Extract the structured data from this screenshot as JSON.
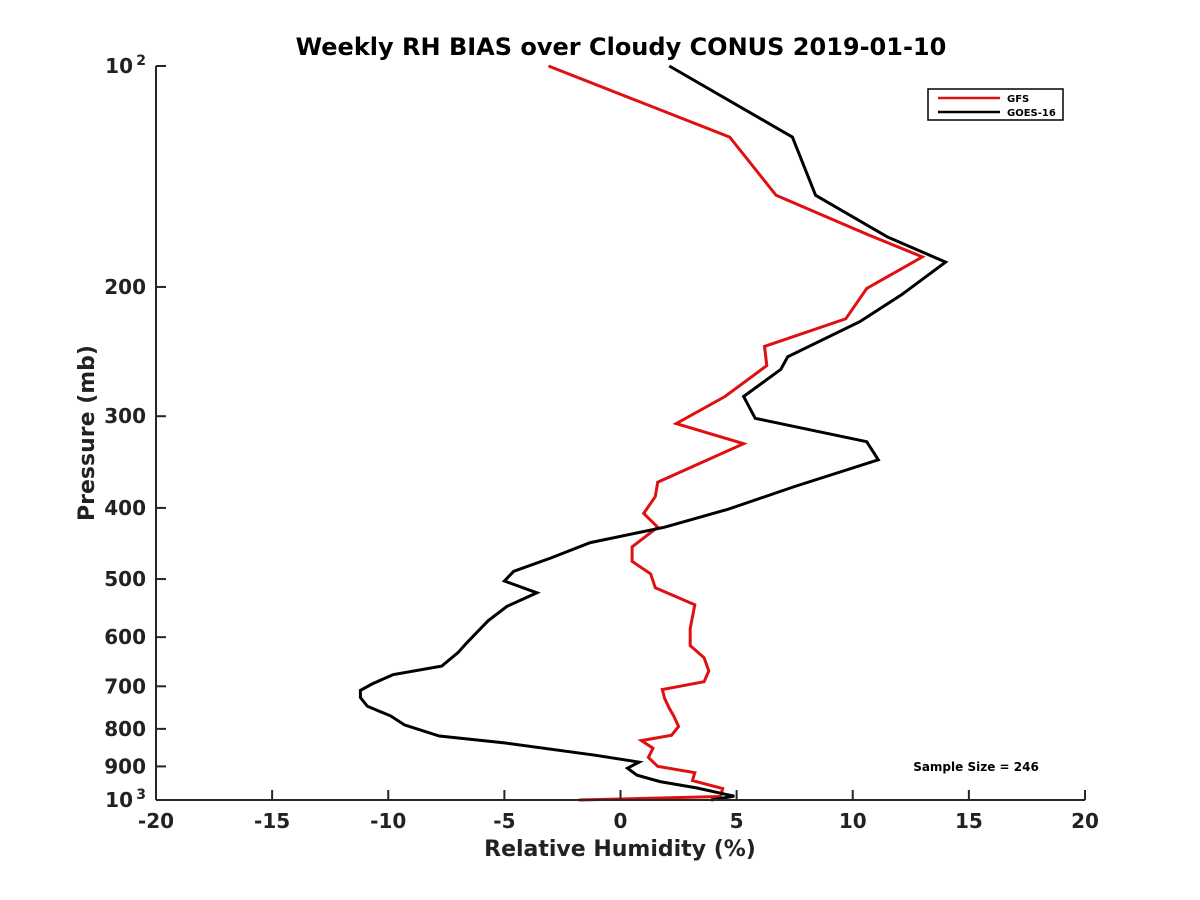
{
  "chart_data": {
    "type": "line",
    "title": "Weekly RH BIAS over Cloudy CONUS 2019-01-10",
    "xlabel": "Relative Humidity (%)",
    "ylabel": "Pressure (mb)",
    "xlim": [
      -20,
      20
    ],
    "ylim": [
      100,
      1000
    ],
    "y_scale": "log",
    "y_reversed": true,
    "grid": false,
    "x_ticks": [
      -20,
      -15,
      -10,
      -5,
      0,
      5,
      10,
      15,
      20
    ],
    "y_ticks": [
      {
        "value": 100,
        "label": "10",
        "sup": "2"
      },
      {
        "value": 200,
        "label": "200",
        "sup": ""
      },
      {
        "value": 300,
        "label": "300",
        "sup": ""
      },
      {
        "value": 400,
        "label": "400",
        "sup": ""
      },
      {
        "value": 500,
        "label": "500",
        "sup": ""
      },
      {
        "value": 600,
        "label": "600",
        "sup": ""
      },
      {
        "value": 700,
        "label": "700",
        "sup": ""
      },
      {
        "value": 800,
        "label": "800",
        "sup": ""
      },
      {
        "value": 900,
        "label": "900",
        "sup": ""
      },
      {
        "value": 1000,
        "label": "10",
        "sup": "3"
      }
    ],
    "legend_position": "top-right",
    "annotation": "Sample Size = 246",
    "series": [
      {
        "name": "GFS",
        "color": "#e01010",
        "points": [
          [
            -3.1,
            100
          ],
          [
            4.7,
            125
          ],
          [
            6.7,
            150
          ],
          [
            10.7,
            170
          ],
          [
            13.0,
            182
          ],
          [
            10.6,
            201
          ],
          [
            9.7,
            221
          ],
          [
            6.2,
            241
          ],
          [
            6.3,
            256
          ],
          [
            4.5,
            282
          ],
          [
            2.4,
            307
          ],
          [
            5.3,
            327
          ],
          [
            1.6,
            369
          ],
          [
            1.5,
            386
          ],
          [
            1.0,
            407
          ],
          [
            1.6,
            425
          ],
          [
            0.5,
            452
          ],
          [
            0.5,
            473
          ],
          [
            1.3,
            492
          ],
          [
            1.5,
            514
          ],
          [
            3.2,
            542
          ],
          [
            3.0,
            584
          ],
          [
            3.0,
            616
          ],
          [
            3.6,
            640
          ],
          [
            3.8,
            667
          ],
          [
            3.6,
            690
          ],
          [
            1.8,
            707
          ],
          [
            1.9,
            727
          ],
          [
            2.1,
            750
          ],
          [
            2.3,
            769
          ],
          [
            2.5,
            794
          ],
          [
            2.2,
            816
          ],
          [
            0.9,
            830
          ],
          [
            1.4,
            850
          ],
          [
            1.2,
            875
          ],
          [
            1.6,
            900
          ],
          [
            3.2,
            918
          ],
          [
            3.1,
            941
          ],
          [
            4.4,
            965
          ],
          [
            4.3,
            989
          ],
          [
            -1.8,
            1000
          ]
        ]
      },
      {
        "name": "GOES-16",
        "color": "#000000",
        "points": [
          [
            2.1,
            100
          ],
          [
            7.4,
            125
          ],
          [
            8.4,
            150
          ],
          [
            11.5,
            171
          ],
          [
            14.0,
            185
          ],
          [
            12.1,
            205
          ],
          [
            10.3,
            223
          ],
          [
            7.2,
            249
          ],
          [
            6.9,
            259
          ],
          [
            5.3,
            282
          ],
          [
            5.8,
            302
          ],
          [
            10.6,
            325
          ],
          [
            11.1,
            344
          ],
          [
            7.5,
            374
          ],
          [
            4.6,
            402
          ],
          [
            1.9,
            425
          ],
          [
            -1.3,
            446
          ],
          [
            -3.0,
            468
          ],
          [
            -4.6,
            488
          ],
          [
            -5.0,
            503
          ],
          [
            -3.6,
            522
          ],
          [
            -4.9,
            545
          ],
          [
            -5.7,
            570
          ],
          [
            -6.6,
            610
          ],
          [
            -7.0,
            630
          ],
          [
            -7.7,
            657
          ],
          [
            -9.8,
            675
          ],
          [
            -10.7,
            695
          ],
          [
            -11.2,
            709
          ],
          [
            -11.2,
            725
          ],
          [
            -10.9,
            745
          ],
          [
            -9.9,
            768
          ],
          [
            -9.3,
            790
          ],
          [
            -7.8,
            818
          ],
          [
            -5.0,
            836
          ],
          [
            -1.1,
            869
          ],
          [
            0.8,
            888
          ],
          [
            0.3,
            905
          ],
          [
            0.7,
            925
          ],
          [
            1.7,
            944
          ],
          [
            3.3,
            963
          ],
          [
            4.3,
            979
          ],
          [
            4.9,
            988
          ],
          [
            3.9,
            1000
          ]
        ]
      }
    ]
  }
}
